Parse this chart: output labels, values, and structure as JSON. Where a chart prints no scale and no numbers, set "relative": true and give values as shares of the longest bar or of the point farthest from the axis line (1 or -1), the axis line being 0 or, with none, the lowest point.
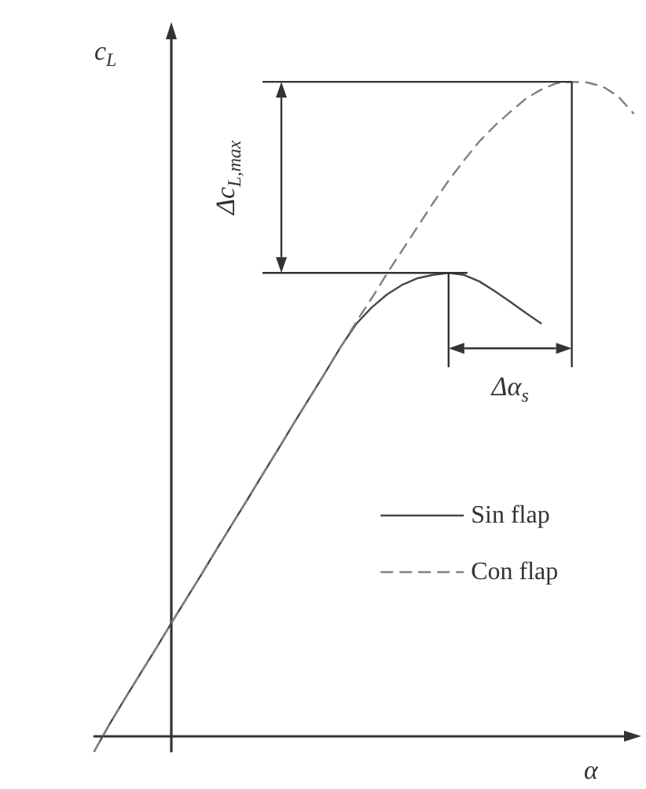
{
  "chart_data": {
    "type": "line",
    "relative": true,
    "xlabel": "α",
    "ylabel": "c$_{L}$",
    "annotations": [
      "Δc$_{L,max}$",
      "Δα$_{s}$"
    ],
    "categories": [
      null,
      null,
      null,
      null,
      null,
      null,
      null,
      null,
      null,
      null,
      null,
      null,
      null,
      null,
      null,
      null,
      null,
      null,
      null,
      null,
      null,
      null,
      null,
      null,
      null,
      null,
      null,
      null,
      null,
      null,
      null,
      null,
      null,
      null,
      null,
      null
    ],
    "series": [
      {
        "name": "Sin flap",
        "color": "#474747",
        "line_style": "solid",
        "values": [
          -0.023,
          0.019,
          0.058,
          0.096,
          0.134,
          0.173,
          0.211,
          0.249,
          0.288,
          0.326,
          0.364,
          0.403,
          0.441,
          0.48,
          0.518,
          0.556,
          0.595,
          0.63,
          0.655,
          0.675,
          0.69,
          0.7,
          0.705,
          0.708,
          0.705,
          0.695,
          0.68,
          0.664,
          0.647,
          0.631,
          null,
          null,
          null,
          null,
          null,
          null
        ]
      },
      {
        "name": "Con flap",
        "color": "#808080",
        "line_style": "dashed",
        "values": [
          -0.023,
          0.019,
          0.058,
          0.096,
          0.134,
          0.173,
          0.211,
          0.249,
          0.288,
          0.326,
          0.364,
          0.403,
          0.441,
          0.48,
          0.518,
          0.556,
          0.595,
          0.633,
          0.669,
          0.707,
          0.743,
          0.779,
          0.815,
          0.849,
          0.88,
          0.909,
          0.933,
          0.954,
          0.974,
          0.988,
          0.998,
          1,
          0.999,
          0.993,
          0.978,
          0.952
        ]
      }
    ],
    "legend": "right"
  }
}
